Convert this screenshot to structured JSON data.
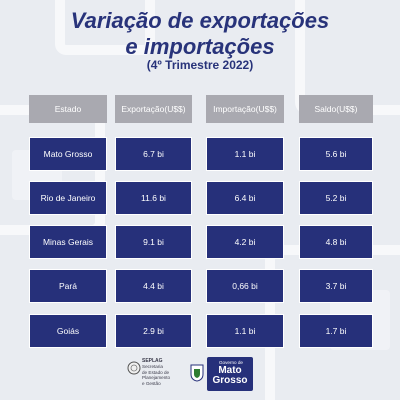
{
  "title_line1": "Variação de exportações",
  "title_line2": "e importações",
  "subtitle": "(4º Trimestre 2022)",
  "table": {
    "headers": [
      "Estado",
      "Exportação(U$$)",
      "Importação(U$$)",
      "Saldo(U$$)"
    ],
    "rows": [
      [
        "Mato Grosso",
        "6.7 bi",
        "1.1 bi",
        "5.6 bi"
      ],
      [
        "Rio de Janeiro",
        "11.6 bi",
        "6.4 bi",
        "5.2 bi"
      ],
      [
        "Minas Gerais",
        "9.1 bi",
        "4.2 bi",
        "4.8 bi"
      ],
      [
        "Pará",
        "4.4 bi",
        "0,66 bi",
        "3.7 bi"
      ],
      [
        "Goiás",
        "2.9 bi",
        "1.1 bi",
        "1.7 bi"
      ]
    ]
  },
  "footer": {
    "sepplag_acronym": "SEPLAG",
    "sepplag_lines": [
      "Secretaria",
      "de Estado de",
      "Planejamento",
      "e Gestão"
    ],
    "gov_small": "Governo de",
    "gov_big1": "Mato",
    "gov_big2": "Grosso"
  },
  "colors": {
    "navy": "#26307a",
    "header_gray": "#a9a9b0",
    "background": "#e9ecf1"
  }
}
